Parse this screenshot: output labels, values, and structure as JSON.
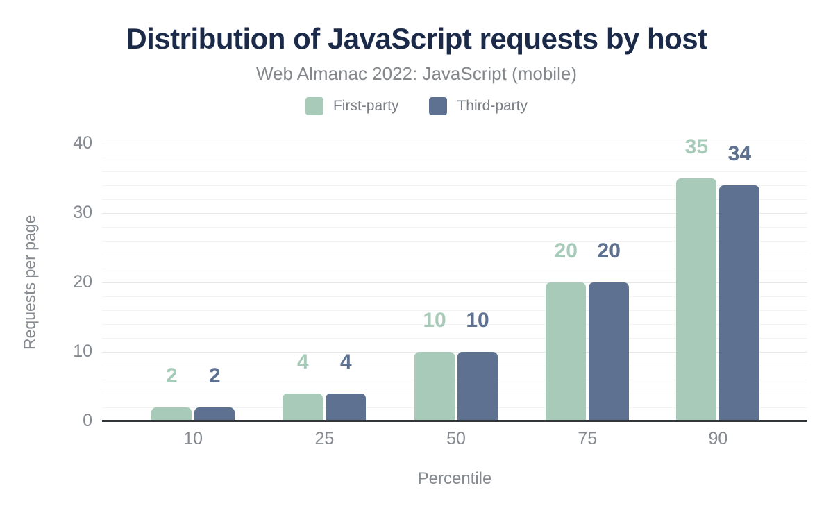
{
  "header": {
    "title": "Distribution of JavaScript requests by host",
    "subtitle": "Web Almanac 2022: JavaScript (mobile)"
  },
  "chart_data": {
    "type": "bar",
    "title": "Distribution of JavaScript requests by host",
    "subtitle": "Web Almanac 2022: JavaScript (mobile)",
    "categories": [
      "10",
      "25",
      "50",
      "75",
      "90"
    ],
    "series": [
      {
        "name": "First-party",
        "color": "#a8cbb9",
        "values": [
          2,
          4,
          10,
          20,
          35
        ]
      },
      {
        "name": "Third-party",
        "color": "#5e7190",
        "values": [
          2,
          4,
          10,
          20,
          34
        ]
      }
    ],
    "xlabel": "Percentile",
    "ylabel": "Requests per page",
    "ylim": [
      0,
      40
    ],
    "yticks": [
      0,
      10,
      20,
      30,
      40
    ],
    "minor_grid_step": 2,
    "grid": true,
    "legend_position": "top",
    "value_labels_shown": true,
    "colors": {
      "title": "#1b2a49",
      "muted_text": "#84888c",
      "axis_text": "#858a90",
      "axis_line": "#333639",
      "major_gridline": "#e7e7e7",
      "minor_gridline": "#f3f3f3",
      "background": "#ffffff"
    }
  }
}
